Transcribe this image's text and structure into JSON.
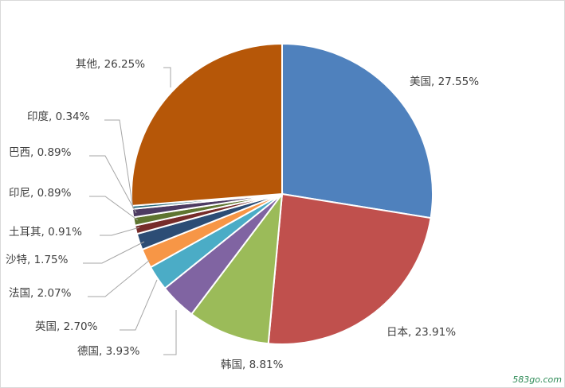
{
  "chart_data": {
    "type": "pie",
    "title": "",
    "slices": [
      {
        "label": "美国, 27.55%",
        "name": "美国",
        "value": 27.55,
        "color": "#4f81bd"
      },
      {
        "label": "日本, 23.91%",
        "name": "日本",
        "value": 23.91,
        "color": "#c0504d"
      },
      {
        "label": "韩国, 8.81%",
        "name": "韩国",
        "value": 8.81,
        "color": "#9bbb59"
      },
      {
        "label": "德国, 3.93%",
        "name": "德国",
        "value": 3.93,
        "color": "#8064a2"
      },
      {
        "label": "英国, 2.70%",
        "name": "英国",
        "value": 2.7,
        "color": "#4bacc6"
      },
      {
        "label": "法国, 2.07%",
        "name": "法国",
        "value": 2.07,
        "color": "#f79646"
      },
      {
        "label": "沙特, 1.75%",
        "name": "沙特",
        "value": 1.75,
        "color": "#2c4d75"
      },
      {
        "label": "土耳其, 0.91%",
        "name": "土耳其",
        "value": 0.91,
        "color": "#772c2a"
      },
      {
        "label": "印尼, 0.89%",
        "name": "印尼",
        "value": 0.89,
        "color": "#5f7530"
      },
      {
        "label": "巴西, 0.89%",
        "name": "巴西",
        "value": 0.89,
        "color": "#4d3b62"
      },
      {
        "label": "印度, 0.34%",
        "name": "印度",
        "value": 0.34,
        "color": "#276a7c"
      },
      {
        "label": "其他, 26.25%",
        "name": "其他",
        "value": 26.25,
        "color": "#b65708"
      }
    ],
    "legend": "none",
    "data_labels": "outside with leader lines"
  },
  "watermark": {
    "text": "583go.com",
    "color": "#2e8b57"
  }
}
